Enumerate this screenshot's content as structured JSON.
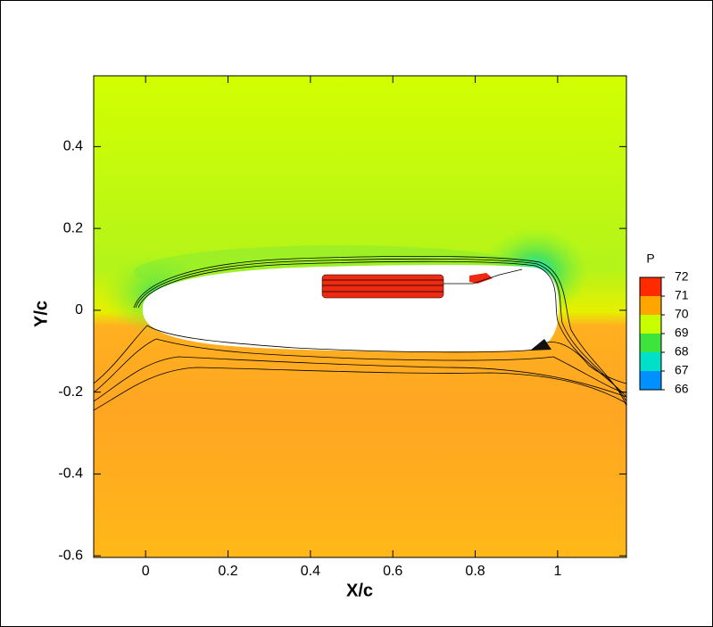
{
  "chart_data": {
    "type": "contour",
    "xlabel": "X/c",
    "ylabel": "Y/c",
    "xlim": [
      -0.126,
      1.167
    ],
    "ylim": [
      -0.604,
      0.573
    ],
    "xticks": [
      0,
      0.2,
      0.4,
      0.6,
      0.8,
      1
    ],
    "yticks": [
      -0.6,
      -0.4,
      -0.2,
      0,
      0.2,
      0.4
    ],
    "colorbar": {
      "title": "P",
      "levels": [
        72,
        71,
        70,
        69,
        68,
        67,
        66
      ],
      "colors": [
        "#ff2a00",
        "#ffa500",
        "#c8ff00",
        "#3ee43e",
        "#00e0c8",
        "#0090ff",
        "#0010ff"
      ]
    }
  }
}
